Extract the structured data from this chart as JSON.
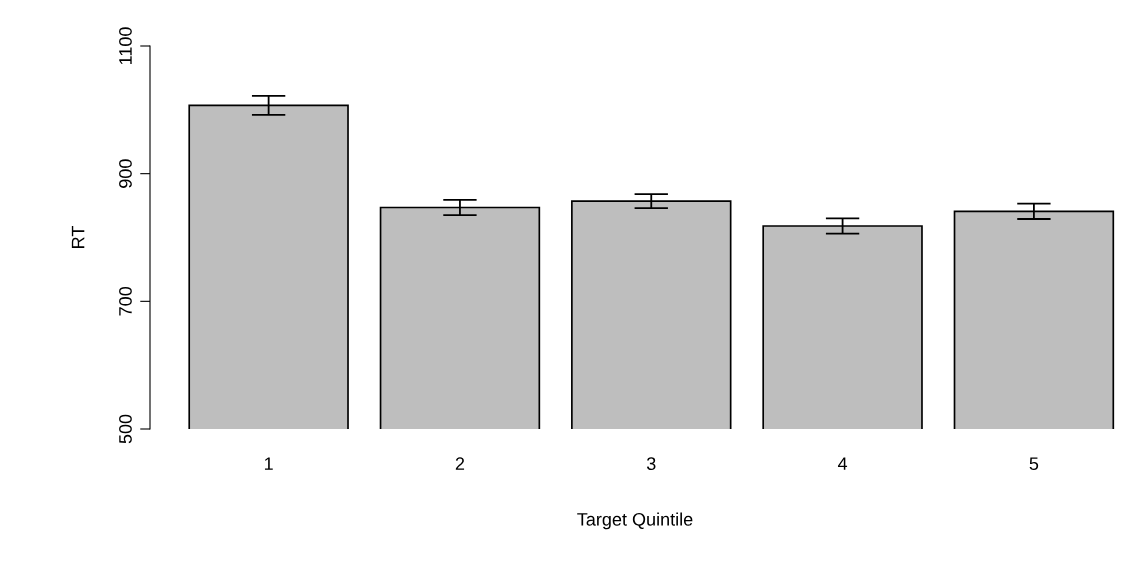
{
  "chart_data": {
    "type": "bar",
    "xlabel": "Target Quintile",
    "ylabel": "RT",
    "categories": [
      "1",
      "2",
      "3",
      "4",
      "5"
    ],
    "values": [
      1007,
      847,
      857,
      818,
      841
    ],
    "errors": [
      15,
      12,
      11,
      12,
      12
    ],
    "color": "#bebebe",
    "ylim": [
      500,
      1100
    ],
    "yticks": [
      500,
      700,
      900,
      1100
    ],
    "grid": false
  }
}
